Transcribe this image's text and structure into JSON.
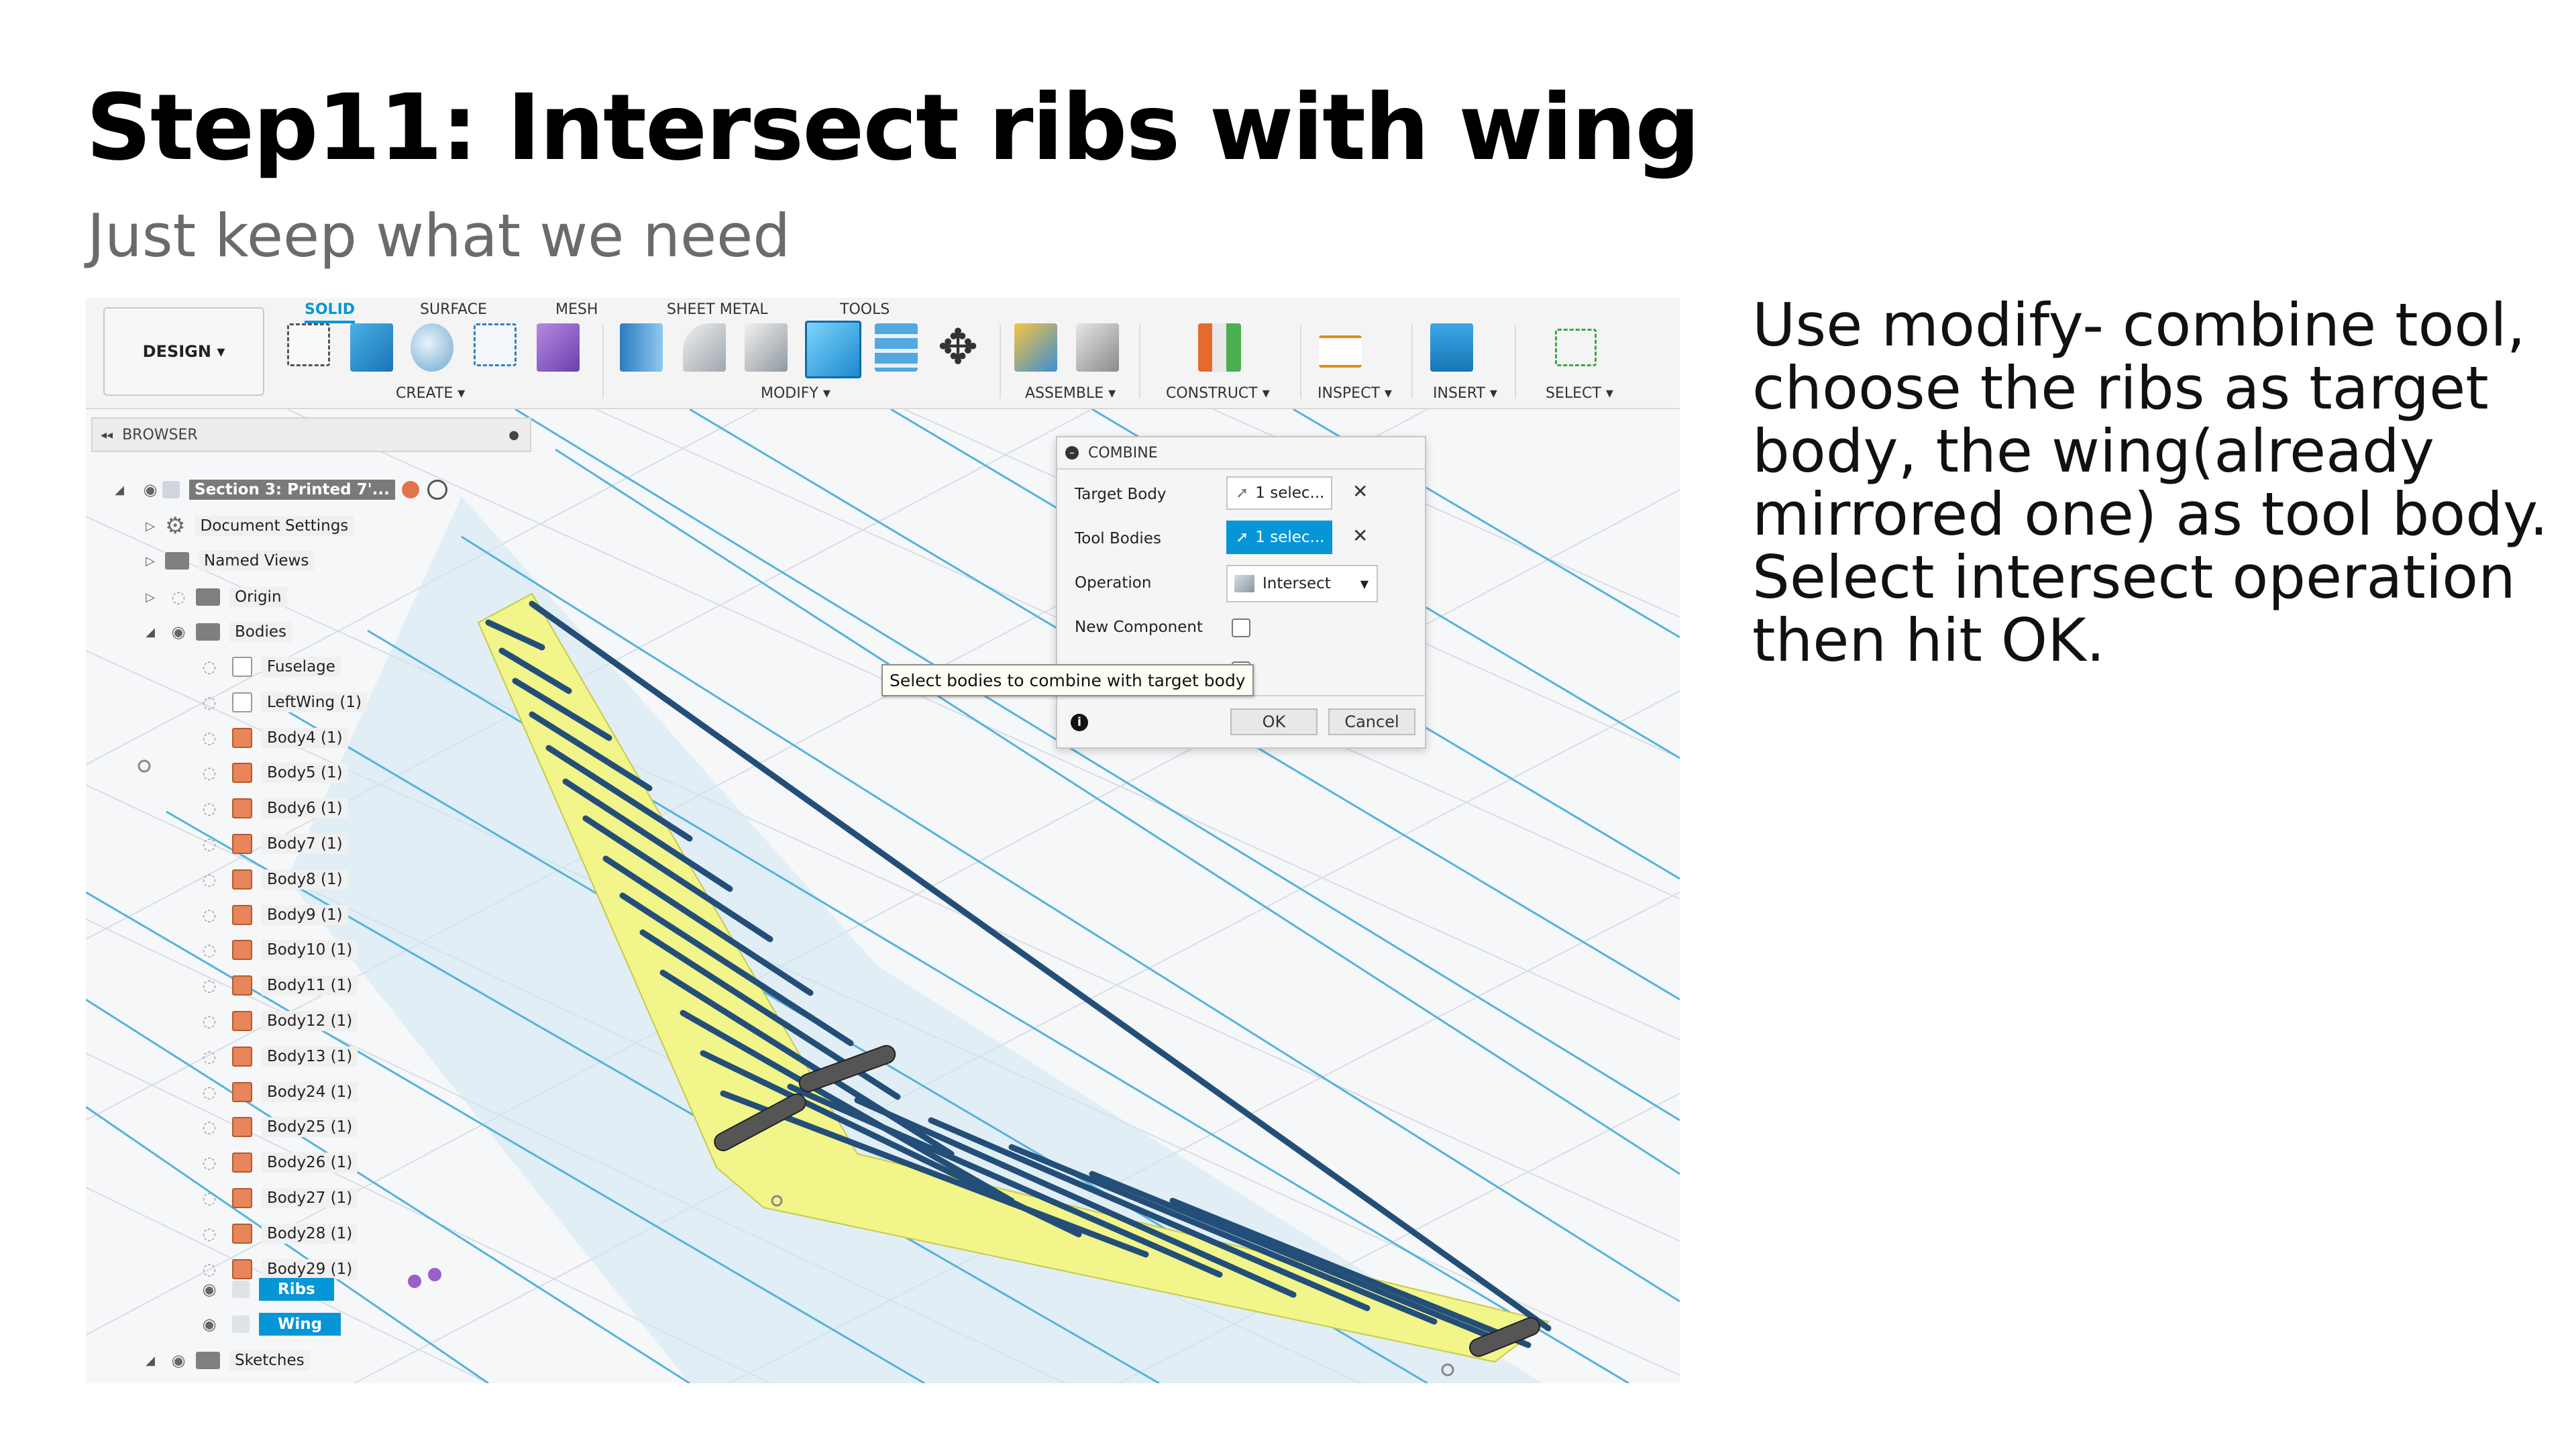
{
  "slide": {
    "title": "Step11: Intersect ribs with wing",
    "subtitle": "Just keep what we need",
    "instructions": "Use modify- combine tool, choose the ribs as target body, the wing(already mirrored one) as tool body. Select intersect operation then hit OK."
  },
  "toolbar": {
    "design_label": "DESIGN ▾",
    "tabs": [
      "SOLID",
      "SURFACE",
      "MESH",
      "SHEET METAL",
      "TOOLS"
    ],
    "groups": [
      "CREATE ▾",
      "MODIFY ▾",
      "ASSEMBLE ▾",
      "CONSTRUCT ▾",
      "INSPECT ▾",
      "INSERT ▾",
      "SELECT ▾"
    ],
    "accent": "#0696d7"
  },
  "browser": {
    "header": "BROWSER",
    "root": "Section 3: Printed 7'...",
    "document_settings": "Document Settings",
    "named_views": "Named Views",
    "origin": "Origin",
    "bodies": "Bodies",
    "body_items": [
      "Fuselage",
      "LeftWing (1)",
      "Body4 (1)",
      "Body5 (1)",
      "Body6 (1)",
      "Body7 (1)",
      "Body8 (1)",
      "Body9 (1)",
      "Body10 (1)",
      "Body11 (1)",
      "Body12 (1)",
      "Body13 (1)",
      "Body24 (1)",
      "Body25 (1)",
      "Body26 (1)",
      "Body27 (1)",
      "Body28 (1)",
      "Body29 (1)"
    ],
    "ribs": "Ribs",
    "wing": "Wing",
    "sketches": "Sketches"
  },
  "dialog": {
    "title": "COMBINE",
    "target_body_label": "Target Body",
    "target_body_value": "1 selec...",
    "tool_bodies_label": "Tool Bodies",
    "tool_bodies_value": "1 selec...",
    "operation_label": "Operation",
    "operation_value": "Intersect",
    "new_component_label": "New Component",
    "ok_label": "OK",
    "cancel_label": "Cancel"
  },
  "tooltip": "Select bodies to combine with target body"
}
